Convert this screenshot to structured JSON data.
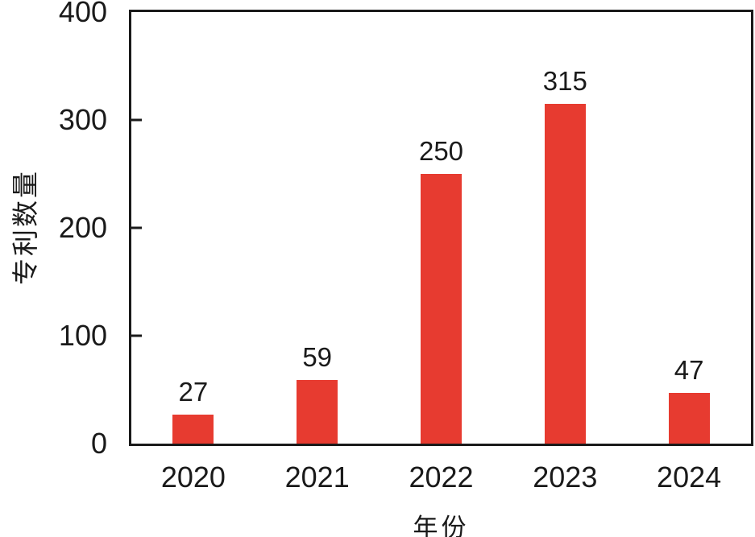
{
  "chart_data": {
    "type": "bar",
    "title": "",
    "categories": [
      "2020",
      "2021",
      "2022",
      "2023",
      "2024"
    ],
    "values": [
      27,
      59,
      250,
      315,
      47
    ],
    "data_labels": [
      "27",
      "59",
      "250",
      "315",
      "47"
    ],
    "xlabel": "年份",
    "ylabel": "专利数量",
    "ylim": [
      0,
      400
    ],
    "yticks": [
      0,
      100,
      200,
      300,
      400
    ],
    "grid": false,
    "legend_position": "none",
    "bar_color": "#e73b30",
    "axis_color": "#1a1a1a",
    "text_color": "#1a1a1a",
    "background_color": "#ffffff"
  }
}
